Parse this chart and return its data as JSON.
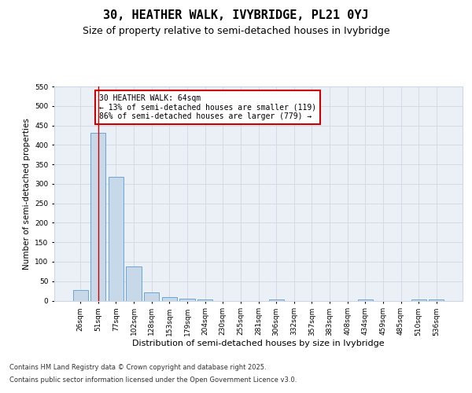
{
  "title_line1": "30, HEATHER WALK, IVYBRIDGE, PL21 0YJ",
  "title_line2": "Size of property relative to semi-detached houses in Ivybridge",
  "xlabel": "Distribution of semi-detached houses by size in Ivybridge",
  "ylabel": "Number of semi-detached properties",
  "categories": [
    "26sqm",
    "51sqm",
    "77sqm",
    "102sqm",
    "128sqm",
    "153sqm",
    "179sqm",
    "204sqm",
    "230sqm",
    "255sqm",
    "281sqm",
    "306sqm",
    "332sqm",
    "357sqm",
    "383sqm",
    "408sqm",
    "434sqm",
    "459sqm",
    "485sqm",
    "510sqm",
    "536sqm"
  ],
  "values": [
    28,
    430,
    318,
    87,
    22,
    10,
    5,
    3,
    0,
    0,
    0,
    3,
    0,
    0,
    0,
    0,
    3,
    0,
    0,
    3,
    3
  ],
  "bar_color": "#c7d9e8",
  "bar_edge_color": "#5b9bd5",
  "grid_color": "#d0d8e4",
  "background_color": "#eaf0f6",
  "annotation_line1": "30 HEATHER WALK: 64sqm",
  "annotation_line2": "← 13% of semi-detached houses are smaller (119)",
  "annotation_line3": "86% of semi-detached houses are larger (779) →",
  "annotation_box_color": "#ffffff",
  "annotation_box_edge_color": "#cc0000",
  "vline_x": 1.0,
  "vline_color": "#cc0000",
  "ylim": [
    0,
    550
  ],
  "yticks": [
    0,
    50,
    100,
    150,
    200,
    250,
    300,
    350,
    400,
    450,
    500,
    550
  ],
  "footer_line1": "Contains HM Land Registry data © Crown copyright and database right 2025.",
  "footer_line2": "Contains public sector information licensed under the Open Government Licence v3.0.",
  "title_fontsize": 11,
  "subtitle_fontsize": 9,
  "ylabel_fontsize": 7.5,
  "xlabel_fontsize": 8,
  "tick_fontsize": 6.5,
  "annotation_fontsize": 7,
  "footer_fontsize": 6
}
